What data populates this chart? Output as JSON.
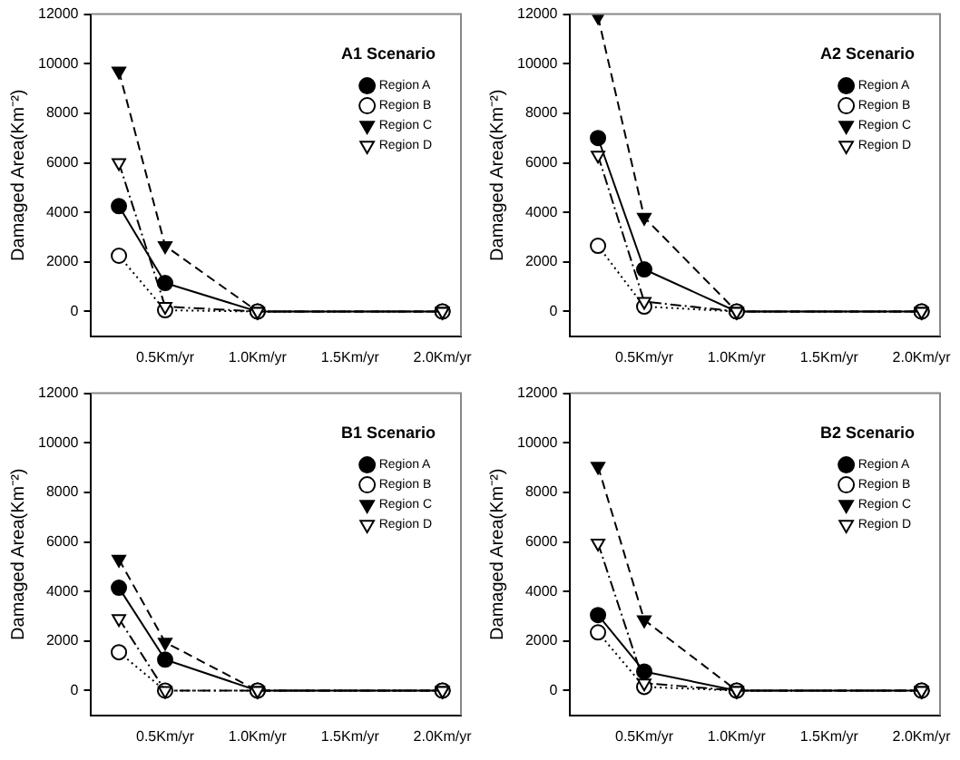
{
  "chart_data": [
    {
      "type": "line",
      "title": "A1 Scenario",
      "ylabel": "Damaged Area(Km⁻²)",
      "x": [
        0.25,
        0.5,
        1.0,
        2.0
      ],
      "xlim": [
        0.1,
        2.1
      ],
      "xticks": [
        {
          "value": 0.5,
          "label": "0.5Km/yr"
        },
        {
          "value": 1.0,
          "label": "1.0Km/yr"
        },
        {
          "value": 1.5,
          "label": "1.5Km/yr"
        },
        {
          "value": 2.0,
          "label": "2.0Km/yr"
        }
      ],
      "ylim": [
        -1000,
        12000
      ],
      "yticks": [
        0,
        2000,
        4000,
        6000,
        8000,
        10000,
        12000
      ],
      "grid": false,
      "legend": "top right",
      "series": [
        {
          "name": "Region A",
          "color": "#000000",
          "marker": "circle",
          "line_style": "solid",
          "values": [
            4250,
            1150,
            0,
            0
          ]
        },
        {
          "name": "Region B",
          "color": "#000000",
          "marker": "circle",
          "line_style": "dotted",
          "values": [
            2250,
            50,
            0,
            0
          ]
        },
        {
          "name": "Region C",
          "color": "#000000",
          "marker": "triangle",
          "line_style": "dashed",
          "values": [
            9700,
            2650,
            0,
            0
          ]
        },
        {
          "name": "Region D",
          "color": "#000000",
          "marker": "triangle",
          "line_style": "dashdot",
          "values": [
            6000,
            200,
            0,
            0
          ]
        }
      ]
    },
    {
      "type": "line",
      "title": "A2 Scenario",
      "ylabel": "Damaged Area(Km⁻²)",
      "x": [
        0.25,
        0.5,
        1.0,
        2.0
      ],
      "xlim": [
        0.1,
        2.1
      ],
      "xticks": [
        {
          "value": 0.5,
          "label": "0.5Km/yr"
        },
        {
          "value": 1.0,
          "label": "1.0Km/yr"
        },
        {
          "value": 1.5,
          "label": "1.5Km/yr"
        },
        {
          "value": 2.0,
          "label": "2.0Km/yr"
        }
      ],
      "ylim": [
        -1000,
        12000
      ],
      "yticks": [
        0,
        2000,
        4000,
        6000,
        8000,
        10000,
        12000
      ],
      "grid": false,
      "legend": "top right",
      "series": [
        {
          "name": "Region A",
          "color": "#000000",
          "marker": "circle",
          "line_style": "solid",
          "values": [
            7000,
            1700,
            0,
            0
          ]
        },
        {
          "name": "Region B",
          "color": "#000000",
          "marker": "circle",
          "line_style": "dotted",
          "values": [
            2650,
            200,
            0,
            0
          ]
        },
        {
          "name": "Region C",
          "color": "#000000",
          "marker": "triangle",
          "line_style": "dashed",
          "values": [
            11900,
            3800,
            0,
            0
          ]
        },
        {
          "name": "Region D",
          "color": "#000000",
          "marker": "triangle",
          "line_style": "dashdot",
          "values": [
            6300,
            400,
            0,
            0
          ]
        }
      ]
    },
    {
      "type": "line",
      "title": "B1 Scenario",
      "ylabel": "Damaged Area(Km⁻²)",
      "x": [
        0.25,
        0.5,
        1.0,
        2.0
      ],
      "xlim": [
        0.1,
        2.1
      ],
      "xticks": [
        {
          "value": 0.5,
          "label": "0.5Km/yr"
        },
        {
          "value": 1.0,
          "label": "1.0Km/yr"
        },
        {
          "value": 1.5,
          "label": "1.5Km/yr"
        },
        {
          "value": 2.0,
          "label": "2.0Km/yr"
        }
      ],
      "ylim": [
        -1000,
        12000
      ],
      "yticks": [
        0,
        2000,
        4000,
        6000,
        8000,
        10000,
        12000
      ],
      "grid": false,
      "legend": "top right",
      "series": [
        {
          "name": "Region A",
          "color": "#000000",
          "marker": "circle",
          "line_style": "solid",
          "values": [
            4150,
            1250,
            0,
            0
          ]
        },
        {
          "name": "Region B",
          "color": "#000000",
          "marker": "circle",
          "line_style": "dotted",
          "values": [
            1550,
            0,
            0,
            0
          ]
        },
        {
          "name": "Region C",
          "color": "#000000",
          "marker": "triangle",
          "line_style": "dashed",
          "values": [
            5300,
            1950,
            0,
            0
          ]
        },
        {
          "name": "Region D",
          "color": "#000000",
          "marker": "triangle",
          "line_style": "dashdot",
          "values": [
            2900,
            0,
            0,
            0
          ]
        }
      ]
    },
    {
      "type": "line",
      "title": "B2 Scenario",
      "ylabel": "Damaged Area(Km⁻²)",
      "x": [
        0.25,
        0.5,
        1.0,
        2.0
      ],
      "xlim": [
        0.1,
        2.1
      ],
      "xticks": [
        {
          "value": 0.5,
          "label": "0.5Km/yr"
        },
        {
          "value": 1.0,
          "label": "1.0Km/yr"
        },
        {
          "value": 1.5,
          "label": "1.5Km/yr"
        },
        {
          "value": 2.0,
          "label": "2.0Km/yr"
        }
      ],
      "ylim": [
        -1000,
        12000
      ],
      "yticks": [
        0,
        2000,
        4000,
        6000,
        8000,
        10000,
        12000
      ],
      "grid": false,
      "legend": "top right",
      "series": [
        {
          "name": "Region A",
          "color": "#000000",
          "marker": "circle",
          "line_style": "solid",
          "values": [
            3050,
            770,
            0,
            0
          ]
        },
        {
          "name": "Region B",
          "color": "#000000",
          "marker": "circle",
          "line_style": "dotted",
          "values": [
            2350,
            150,
            0,
            0
          ]
        },
        {
          "name": "Region C",
          "color": "#000000",
          "marker": "triangle",
          "line_style": "dashed",
          "values": [
            9050,
            2850,
            0,
            0
          ]
        },
        {
          "name": "Region D",
          "color": "#000000",
          "marker": "triangle",
          "line_style": "dashdot",
          "values": [
            5950,
            300,
            0,
            0
          ]
        }
      ]
    }
  ]
}
